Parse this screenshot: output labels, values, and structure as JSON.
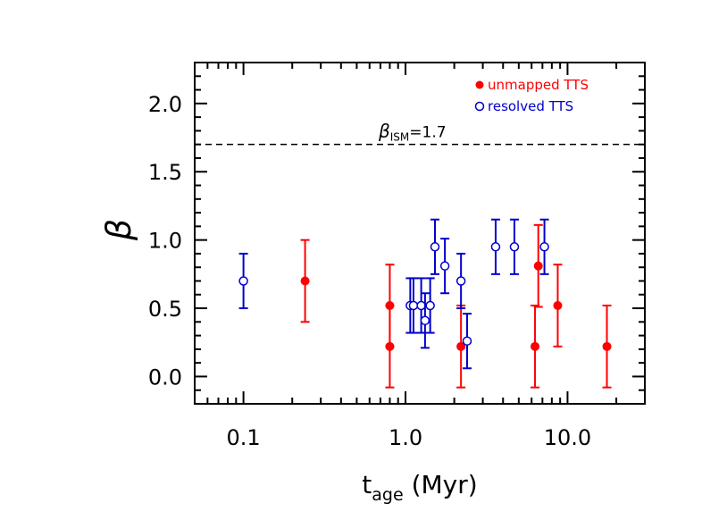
{
  "chart_data": {
    "type": "scatter",
    "title": "",
    "xlabel": "t",
    "xlabel_sub": "age",
    "xlabel_unit": " (Myr)",
    "ylabel": "β",
    "x_scale": "log",
    "xlim": [
      0.05,
      30
    ],
    "ylim": [
      -0.2,
      2.3
    ],
    "x_ticks": [
      0.1,
      1.0,
      10.0
    ],
    "x_tick_labels": [
      "0.1",
      "1.0",
      "10.0"
    ],
    "y_ticks": [
      0.0,
      0.5,
      1.0,
      1.5,
      2.0
    ],
    "y_tick_labels": [
      "0.0",
      "0.5",
      "1.0",
      "1.5",
      "2.0"
    ],
    "grid": false,
    "legend_position": "top-right",
    "reference_line": {
      "y": 1.7,
      "label_symbol": "β",
      "label_sub": "ISM",
      "label_value": "=1.7",
      "style": "dashed"
    },
    "series": [
      {
        "name": "unmapped TTS",
        "marker": "filled-circle",
        "color": "#ff0000",
        "points": [
          {
            "x": 0.24,
            "y": 0.7,
            "lo": 0.4,
            "hi": 1.0
          },
          {
            "x": 0.8,
            "y": 0.52,
            "lo": 0.22,
            "hi": 0.82
          },
          {
            "x": 0.8,
            "y": 0.22,
            "lo": -0.08,
            "hi": 0.52
          },
          {
            "x": 2.2,
            "y": 0.22,
            "lo": -0.08,
            "hi": 0.52
          },
          {
            "x": 6.3,
            "y": 0.22,
            "lo": -0.08,
            "hi": 0.52
          },
          {
            "x": 6.6,
            "y": 0.81,
            "lo": 0.51,
            "hi": 1.11
          },
          {
            "x": 8.7,
            "y": 0.52,
            "lo": 0.22,
            "hi": 0.82
          },
          {
            "x": 17.5,
            "y": 0.22,
            "lo": -0.08,
            "hi": 0.52
          }
        ]
      },
      {
        "name": "resolved TTS",
        "marker": "open-circle",
        "color": "#0000cc",
        "points": [
          {
            "x": 0.1,
            "y": 0.7,
            "lo": 0.5,
            "hi": 0.9
          },
          {
            "x": 1.07,
            "y": 0.52,
            "lo": 0.32,
            "hi": 0.72
          },
          {
            "x": 1.12,
            "y": 0.52,
            "lo": 0.32,
            "hi": 0.72
          },
          {
            "x": 1.25,
            "y": 0.52,
            "lo": 0.32,
            "hi": 0.72
          },
          {
            "x": 1.32,
            "y": 0.41,
            "lo": 0.21,
            "hi": 0.61
          },
          {
            "x": 1.42,
            "y": 0.52,
            "lo": 0.32,
            "hi": 0.72
          },
          {
            "x": 1.52,
            "y": 0.95,
            "lo": 0.75,
            "hi": 1.15
          },
          {
            "x": 1.75,
            "y": 0.81,
            "lo": 0.61,
            "hi": 1.01
          },
          {
            "x": 2.2,
            "y": 0.7,
            "lo": 0.5,
            "hi": 0.9
          },
          {
            "x": 2.4,
            "y": 0.26,
            "lo": 0.06,
            "hi": 0.46
          },
          {
            "x": 3.6,
            "y": 0.95,
            "lo": 0.75,
            "hi": 1.15
          },
          {
            "x": 4.7,
            "y": 0.95,
            "lo": 0.75,
            "hi": 1.15
          },
          {
            "x": 7.2,
            "y": 0.95,
            "lo": 0.75,
            "hi": 1.15
          }
        ]
      }
    ]
  }
}
